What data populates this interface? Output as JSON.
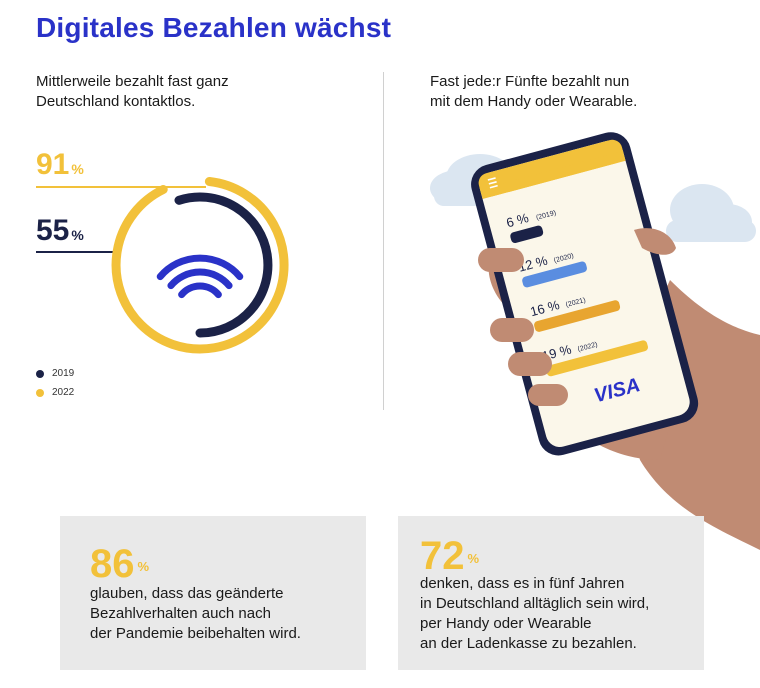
{
  "title": "Digitales Bezahlen wächst",
  "left": {
    "subtitle_line1": "Mittlerweile bezahlt fast ganz",
    "subtitle_line2": "Deutschland kontaktlos."
  },
  "right": {
    "subtitle_line1": "Fast jede:r Fünfte bezahlt nun",
    "subtitle_line2": "mit dem Handy oder Wearable."
  },
  "colors": {
    "title": "#2a32c8",
    "navy": "#1b2247",
    "gold": "#f2c13a",
    "blue": "#5a8de0",
    "orange": "#e8a530",
    "wifi": "#2a32c8"
  },
  "icons": {
    "contactless": "wifi-icon",
    "menu": "menu-icon",
    "brand": "visa-logo"
  },
  "chart_data": [
    {
      "type": "radial-bar",
      "series": [
        {
          "name": "2019",
          "value": 55,
          "label": "55",
          "unit": "%"
        },
        {
          "name": "2022",
          "value": 91,
          "label": "91",
          "unit": "%"
        }
      ],
      "legend": [
        "2019",
        "2022"
      ],
      "legend_position": "bottom-left"
    },
    {
      "type": "bar",
      "orientation": "horizontal",
      "categories": [
        "2019",
        "2020",
        "2021",
        "2022"
      ],
      "values": [
        6,
        12,
        16,
        19
      ],
      "labels": [
        "6 %",
        "12 %",
        "16 %",
        "19 %"
      ],
      "cat_labels": [
        "(2019)",
        "(2020)",
        "(2021)",
        "(2022)"
      ],
      "unit": "%"
    }
  ],
  "brand_label": "VISA",
  "cards": [
    {
      "value": "86",
      "unit": "%",
      "lines": [
        "glauben, dass das geänderte",
        "Bezahlverhalten auch nach",
        "der Pandemie beibehalten wird."
      ]
    },
    {
      "value": "72",
      "unit": "%",
      "lines": [
        "denken, dass es in fünf Jahren",
        "in Deutschland alltäglich sein wird,",
        "per Handy oder Wearable",
        "an der Ladenkasse zu bezahlen."
      ]
    }
  ]
}
